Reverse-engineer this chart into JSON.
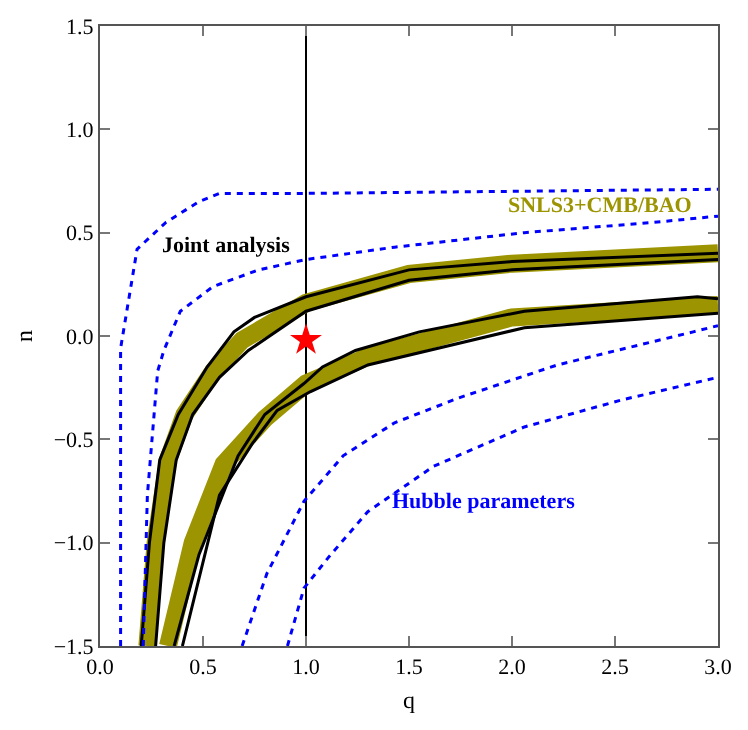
{
  "chart_data": {
    "type": "line",
    "xlabel": "q",
    "ylabel": "n",
    "xlim": [
      0,
      3
    ],
    "ylim": [
      -1.5,
      1.5
    ],
    "xticks": [
      {
        "value": 0,
        "label": "0.0"
      },
      {
        "value": 0.5,
        "label": "0.5"
      },
      {
        "value": 1,
        "label": "1.0"
      },
      {
        "value": 1.5,
        "label": "1.5"
      },
      {
        "value": 2,
        "label": "2.0"
      },
      {
        "value": 2.5,
        "label": "2.5"
      },
      {
        "value": 3,
        "label": "3.0"
      }
    ],
    "yticks": [
      {
        "value": -1.5,
        "label": "−1.5"
      },
      {
        "value": -1,
        "label": "−1.0"
      },
      {
        "value": -0.5,
        "label": "−0.5"
      },
      {
        "value": 0,
        "label": "0.0"
      },
      {
        "value": 0.5,
        "label": "0.5"
      },
      {
        "value": 1,
        "label": "1.0"
      },
      {
        "value": 1.5,
        "label": "1.5"
      }
    ],
    "grid": false,
    "legend": false,
    "series": [
      {
        "name": "SNLS3+CMB/BAO",
        "color": "#9c9400",
        "x": [
          0.23,
          0.27,
          0.33,
          0.41,
          0.55,
          0.69,
          1.0,
          1.5,
          2.0,
          3.0
        ],
        "values": [
          -1.5,
          -1.0,
          -0.6,
          -0.38,
          -0.17,
          -0.02,
          0.16,
          0.3,
          0.35,
          0.4
        ]
      },
      {
        "color": "#9c9400",
        "x": [
          0.33,
          0.45,
          0.6,
          0.8,
          1.0,
          1.3,
          2.0,
          3.0
        ],
        "values": [
          -1.5,
          -1.0,
          -0.62,
          -0.4,
          -0.23,
          -0.1,
          0.09,
          0.15
        ]
      },
      {
        "name": "Joint analysis",
        "color": "#000000",
        "line_style": "solid",
        "x": [
          0.2,
          0.24,
          0.29,
          0.38,
          0.52,
          0.65,
          0.75,
          1.0,
          1.5,
          2.0,
          3.0
        ],
        "values": [
          -1.5,
          -1.0,
          -0.6,
          -0.38,
          -0.15,
          0.02,
          0.09,
          0.19,
          0.32,
          0.36,
          0.4
        ]
      },
      {
        "color": "#000000",
        "line_style": "solid",
        "x": [
          0.27,
          0.31,
          0.37,
          0.45,
          0.58,
          0.72,
          1.0,
          1.5,
          2.0,
          3.0
        ],
        "values": [
          -1.5,
          -1.0,
          -0.6,
          -0.38,
          -0.2,
          -0.07,
          0.12,
          0.27,
          0.32,
          0.37
        ]
      },
      {
        "color": "#000000",
        "line_style": "solid",
        "x": [
          0.36,
          0.48,
          0.67,
          0.8,
          0.99,
          1.08,
          1.24,
          1.55,
          2.06,
          2.9,
          3.0
        ],
        "values": [
          -1.5,
          -1.06,
          -0.58,
          -0.38,
          -0.23,
          -0.15,
          -0.07,
          0.02,
          0.12,
          0.19,
          0.18
        ]
      },
      {
        "color": "#000000",
        "line_style": "solid",
        "x": [
          0.4,
          0.58,
          0.74,
          0.86,
          1.02,
          1.3,
          2.06,
          3.0
        ],
        "values": [
          -1.5,
          -0.77,
          -0.52,
          -0.36,
          -0.27,
          -0.14,
          0.04,
          0.11
        ]
      },
      {
        "color": "#0000ff",
        "line_style": "dotted",
        "x": [
          0.1,
          0.1,
          0.1,
          0.18,
          0.32,
          0.48,
          0.58,
          1.0,
          3.0
        ],
        "values": [
          -1.5,
          -0.14,
          -0.06,
          0.42,
          0.55,
          0.65,
          0.69,
          0.69,
          0.71
        ]
      },
      {
        "color": "#0000ff",
        "line_style": "dotted",
        "x": [
          0.21,
          0.23,
          0.28,
          0.31,
          0.39,
          0.55,
          0.77,
          1.0,
          1.43,
          2.06,
          2.69,
          3.0
        ],
        "values": [
          -1.5,
          -0.77,
          -0.17,
          -0.07,
          0.12,
          0.24,
          0.32,
          0.37,
          0.43,
          0.5,
          0.55,
          0.58
        ]
      },
      {
        "name": "Hubble parameters",
        "color": "#0000ff",
        "line_style": "dotted",
        "x": [
          0.69,
          0.81,
          0.99,
          1.18,
          1.43,
          1.74,
          2.22,
          2.88,
          3.0
        ],
        "values": [
          -1.5,
          -1.15,
          -0.8,
          -0.58,
          -0.42,
          -0.3,
          -0.14,
          0.02,
          0.05
        ]
      },
      {
        "color": "#0000ff",
        "line_style": "dotted",
        "x": [
          0.91,
          0.99,
          1.11,
          1.3,
          1.62,
          2.06,
          2.53,
          3.0
        ],
        "values": [
          -1.5,
          -1.22,
          -1.07,
          -0.85,
          -0.63,
          -0.44,
          -0.31,
          -0.2
        ]
      },
      {
        "type": "scatter",
        "marker": "star",
        "color": "#ff0000",
        "x": [
          1.0
        ],
        "values": [
          -0.02
        ]
      }
    ],
    "ref_lines": [
      {
        "axis": "x",
        "value": 1,
        "color": "#000000",
        "line_style": "solid"
      }
    ]
  }
}
